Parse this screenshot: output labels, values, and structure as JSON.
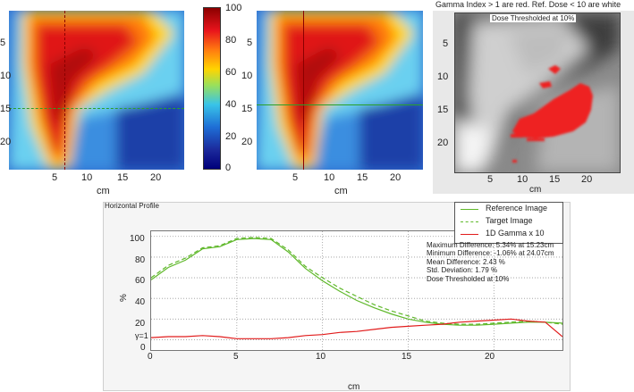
{
  "gamma_title": "Gamma Index > 1 are red. Ref. Dose < 10 are white",
  "gamma_subtitle": "Dose Thresholded at 10%",
  "colorbar_ticks": [
    "100",
    "80",
    "60",
    "40",
    "20",
    "0"
  ],
  "map_y_ticks": [
    "5",
    "10",
    "15",
    "20"
  ],
  "map_x_ticks": [
    "5",
    "10",
    "15",
    "20"
  ],
  "map_x_label": "cm",
  "profile": {
    "panel_title": "Horizontal Profile",
    "legend": [
      {
        "label": "Reference Image",
        "color": "#5fb82a",
        "dash": "solid"
      },
      {
        "label": "Target Image",
        "color": "#5fb82a",
        "dash": "dashed"
      },
      {
        "label": "1D Gamma x 10",
        "color": "#e11c1c",
        "dash": "solid"
      }
    ],
    "stats": [
      "Maximum Difference: 5.34% at 15.23cm",
      "Minimum Difference: -1.06% at 24.07cm",
      "Mean Difference: 2.43 %",
      "Std. Deviation: 1.79 %",
      "Dose Thresholded at 10%"
    ],
    "y_label": "%",
    "x_label": "cm",
    "y_ticks": [
      "100",
      "80",
      "60",
      "40",
      "20",
      "γ=1",
      "0"
    ],
    "x_ticks": [
      "0",
      "5",
      "10",
      "15",
      "20"
    ]
  },
  "chart_data": {
    "type": "line",
    "title": "Horizontal Profile",
    "xlabel": "cm",
    "ylabel": "%",
    "xlim": [
      0,
      24
    ],
    "ylim": [
      -10,
      105
    ],
    "gamma_reference_line": 10,
    "x": [
      0,
      1,
      2,
      3,
      4,
      5,
      6,
      7,
      8,
      9,
      10,
      11,
      12,
      13,
      14,
      15,
      16,
      17,
      18,
      19,
      20,
      21,
      22,
      23,
      24
    ],
    "series": [
      {
        "name": "Reference Image",
        "values": [
          58,
          70,
          77,
          88,
          90,
          97,
          98,
          97,
          85,
          69,
          57,
          47,
          38,
          31,
          25,
          20,
          17,
          15,
          14,
          14,
          15,
          16,
          17,
          17,
          16
        ]
      },
      {
        "name": "Target Image",
        "values": [
          60,
          72,
          79,
          89,
          91,
          98,
          99,
          98,
          87,
          71,
          60,
          50,
          42,
          34,
          28,
          23,
          18,
          16,
          15,
          15,
          16,
          17,
          18,
          17,
          15
        ]
      },
      {
        "name": "1D Gamma x 10",
        "values": [
          2,
          3,
          3,
          4,
          3,
          1,
          1,
          1,
          2,
          4,
          5,
          7,
          8,
          10,
          12,
          13,
          14,
          15,
          17,
          18,
          19,
          20,
          18,
          17,
          3
        ]
      }
    ]
  }
}
